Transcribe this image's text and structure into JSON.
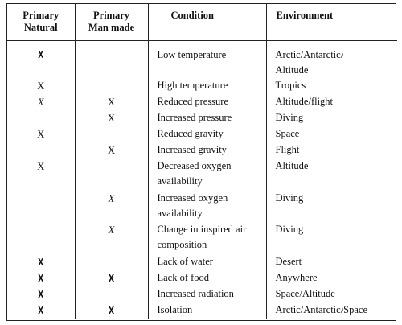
{
  "table": {
    "headers": {
      "natural_line1": "Primary",
      "natural_line2": "Natural",
      "manmade_line1": "Primary",
      "manmade_line2": "Man made",
      "condition": "Condition",
      "environment": "Environment"
    },
    "rows": [
      {
        "natural": "X",
        "natural_style": "bold",
        "manmade": "",
        "manmade_style": "",
        "condition": "Low temperature",
        "environment_line1": "Arctic/Antarctic/",
        "environment_line2": "Altitude"
      },
      {
        "natural": "X",
        "natural_style": "plain",
        "manmade": "",
        "manmade_style": "",
        "condition": "High temperature",
        "environment_line1": "Tropics",
        "environment_line2": ""
      },
      {
        "natural": "X",
        "natural_style": "ital",
        "manmade": "X",
        "manmade_style": "plain",
        "condition": "Reduced pressure",
        "environment_line1": "Altitude/flight",
        "environment_line2": ""
      },
      {
        "natural": "",
        "natural_style": "",
        "manmade": "X",
        "manmade_style": "plain",
        "condition": "Increased pressure",
        "environment_line1": "Diving",
        "environment_line2": ""
      },
      {
        "natural": "X",
        "natural_style": "plain",
        "manmade": "",
        "manmade_style": "",
        "condition": "Reduced gravity",
        "environment_line1": "Space",
        "environment_line2": ""
      },
      {
        "natural": "",
        "natural_style": "",
        "manmade": "X",
        "manmade_style": "plain",
        "condition": "Increased gravity",
        "environment_line1": "Flight",
        "environment_line2": ""
      },
      {
        "natural": "X",
        "natural_style": "plain",
        "manmade": "",
        "manmade_style": "",
        "condition": "Decreased oxygen availability",
        "environment_line1": "Altitude",
        "environment_line2": ""
      },
      {
        "natural": "",
        "natural_style": "",
        "manmade": "X",
        "manmade_style": "ital",
        "condition": "Increased oxygen availability",
        "environment_line1": "Diving",
        "environment_line2": ""
      },
      {
        "natural": "",
        "natural_style": "",
        "manmade": "X",
        "manmade_style": "ital",
        "condition": "Change in inspired air composition",
        "environment_line1": "Diving",
        "environment_line2": ""
      },
      {
        "natural": "X",
        "natural_style": "bold",
        "manmade": "",
        "manmade_style": "",
        "condition": "Lack of water",
        "environment_line1": "Desert",
        "environment_line2": ""
      },
      {
        "natural": "X",
        "natural_style": "bold",
        "manmade": "X",
        "manmade_style": "bold",
        "condition": "Lack of food",
        "environment_line1": "Anywhere",
        "environment_line2": ""
      },
      {
        "natural": "X",
        "natural_style": "bold",
        "manmade": "",
        "manmade_style": "",
        "condition": "Increased radiation",
        "environment_line1": "Space/Altitude",
        "environment_line2": ""
      },
      {
        "natural": "X",
        "natural_style": "bold",
        "manmade": "X",
        "manmade_style": "bold",
        "condition": "Isolation",
        "environment_line1": "Arctic/Antarctic/Space",
        "environment_line2": ""
      }
    ]
  }
}
